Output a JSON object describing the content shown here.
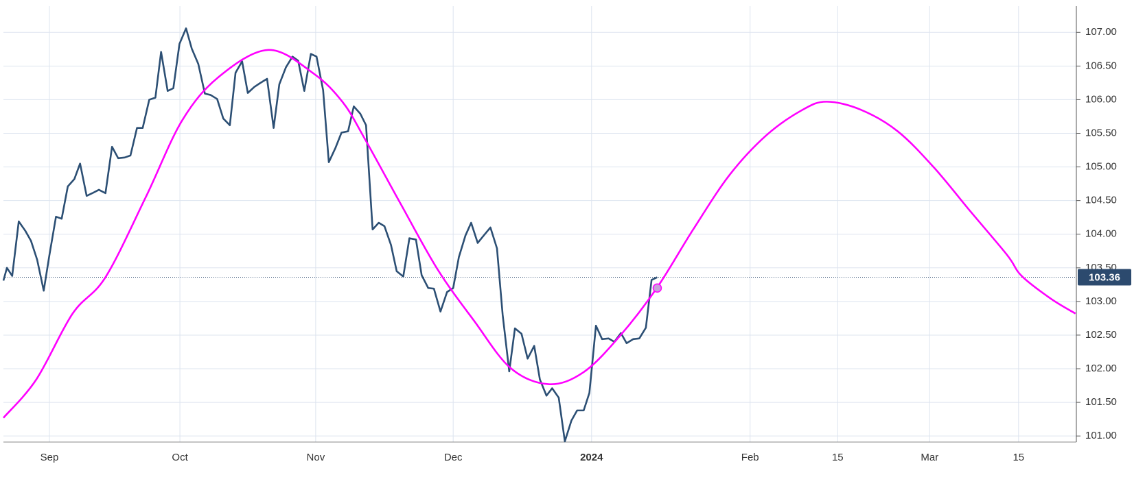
{
  "chart_data": {
    "type": "line",
    "series": [
      {
        "color": "#2c4f74",
        "smooth": false,
        "x": [
          0,
          0.8,
          2,
          3.5,
          5,
          6.3,
          7.7,
          9.2,
          10.5,
          12,
          13.3,
          14.7,
          16.2,
          17.5,
          19,
          20.3,
          21.8,
          23.3,
          24.8,
          26.2,
          27.7,
          29,
          30.5,
          31.8,
          33.3,
          34.7,
          36,
          37.5,
          38.8,
          40.2,
          41.7,
          43,
          44.5,
          46,
          47.3,
          48.8,
          50.2,
          51.7,
          53,
          54.5,
          55.8,
          57.3,
          58.7,
          60.2,
          61.7,
          63,
          64.5,
          66,
          67.3,
          68.7,
          70.2,
          71.5,
          73,
          74.3,
          75.8,
          77.2,
          78.7,
          80,
          81.5,
          82.8,
          84.3,
          85.7,
          87,
          88.5,
          89.8,
          91.3,
          92.7,
          94.2,
          95.5,
          97,
          98.3,
          99.8,
          101.3,
          102.7,
          104,
          105.5,
          106.8,
          108.3,
          109.8,
          111.2,
          112.7,
          114,
          115.5,
          116.8,
          118.3,
          119.7,
          121.2,
          122.5,
          124,
          125.3,
          126.8,
          128.2,
          129.7,
          131,
          132.5,
          133.8,
          135.3,
          136.7,
          138.2,
          139.5,
          141,
          142.3,
          143.8,
          145.2,
          146.7,
          148,
          149.3
        ],
        "values": [
          103.31,
          103.5,
          103.38,
          104.19,
          104.05,
          103.9,
          103.62,
          103.16,
          103.69,
          104.26,
          104.23,
          104.71,
          104.82,
          105.05,
          104.57,
          104.61,
          104.66,
          104.61,
          105.3,
          105.13,
          105.14,
          105.17,
          105.58,
          105.58,
          106,
          106.03,
          106.71,
          106.13,
          106.17,
          106.83,
          107.06,
          106.76,
          106.53,
          106.09,
          106.07,
          106.01,
          105.72,
          105.62,
          106.4,
          106.57,
          106.1,
          106.19,
          106.25,
          106.31,
          105.58,
          106.23,
          106.48,
          106.64,
          106.58,
          106.13,
          106.68,
          106.64,
          106.14,
          105.07,
          105.28,
          105.51,
          105.53,
          105.9,
          105.79,
          105.62,
          104.07,
          104.17,
          104.12,
          103.84,
          103.45,
          103.37,
          103.94,
          103.92,
          103.39,
          103.2,
          103.19,
          102.85,
          103.14,
          103.2,
          103.66,
          103.98,
          104.17,
          103.87,
          103.99,
          104.1,
          103.79,
          102.8,
          101.96,
          102.6,
          102.52,
          102.15,
          102.34,
          101.84,
          101.6,
          101.71,
          101.57,
          100.92,
          101.23,
          101.38,
          101.38,
          101.64,
          102.64,
          102.44,
          102.45,
          102.4,
          102.53,
          102.38,
          102.44,
          102.45,
          102.61,
          103.32,
          103.36
        ]
      },
      {
        "color": "#ff00ff",
        "smooth": true,
        "x": [
          0,
          7.5,
          15.8,
          23.3,
          32.5,
          40.8,
          49.2,
          60.5,
          70.8,
          77.5,
          82.5,
          90.8,
          99.2,
          107.5,
          115.8,
          124.5,
          132.5,
          140.8,
          149.2,
          157.5,
          165.8,
          174.2,
          182.5,
          188,
          195.8,
          204.2,
          212.5,
          220.8,
          229.2,
          232.5,
          239.2,
          244.8
        ],
        "values": [
          101.27,
          101.84,
          102.82,
          103.36,
          104.55,
          105.69,
          106.34,
          106.74,
          106.39,
          105.96,
          105.42,
          104.44,
          103.47,
          102.71,
          102.01,
          101.77,
          101.95,
          102.49,
          103.2,
          104.07,
          104.88,
          105.47,
          105.85,
          105.97,
          105.85,
          105.53,
          104.99,
          104.34,
          103.69,
          103.38,
          103.04,
          102.82
        ]
      }
    ],
    "marker": {
      "x": 149.3,
      "y": 103.2,
      "color": "#c9a0dc"
    },
    "last_value": 103.36,
    "last_value_color": "#2c4a6e",
    "xlim": [
      0,
      245
    ],
    "xticks": [
      {
        "value": 10.5,
        "label": "Sep"
      },
      {
        "value": 40.3,
        "label": "Oct"
      },
      {
        "value": 71.3,
        "label": "Nov"
      },
      {
        "value": 102.7,
        "label": "Dec"
      },
      {
        "value": 134.3,
        "label": "2024"
      },
      {
        "value": 170.5,
        "label": "Feb"
      },
      {
        "value": 190.5,
        "label": "15"
      },
      {
        "value": 211.5,
        "label": "Mar"
      },
      {
        "value": 231.8,
        "label": "15"
      }
    ],
    "ylim": [
      100.91,
      107.39
    ],
    "yticks": [
      {
        "value": 101,
        "label": "101.00"
      },
      {
        "value": 101.5,
        "label": "101.50"
      },
      {
        "value": 102,
        "label": "102.00"
      },
      {
        "value": 102.5,
        "label": "102.50"
      },
      {
        "value": 103,
        "label": "103.00"
      },
      {
        "value": 103.5,
        "label": "103.50"
      },
      {
        "value": 104,
        "label": "104.00"
      },
      {
        "value": 104.5,
        "label": "104.50"
      },
      {
        "value": 105,
        "label": "105.00"
      },
      {
        "value": 105.5,
        "label": "105.50"
      },
      {
        "value": 106,
        "label": "106.00"
      },
      {
        "value": 106.5,
        "label": "106.50"
      },
      {
        "value": 107,
        "label": "107.00"
      }
    ],
    "grid": true
  }
}
